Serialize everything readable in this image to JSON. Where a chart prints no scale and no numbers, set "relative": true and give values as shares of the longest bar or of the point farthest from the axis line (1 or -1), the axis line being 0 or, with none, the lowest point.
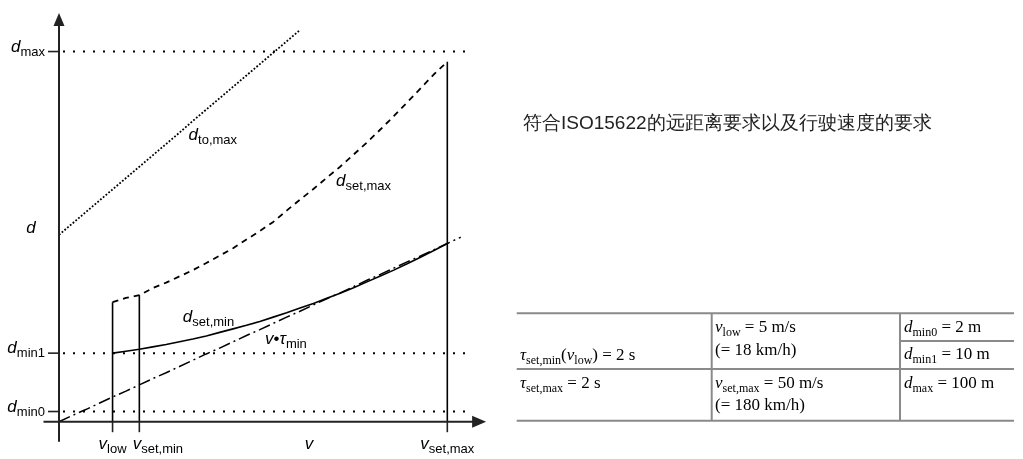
{
  "chart_data": [
    {
      "type": "line",
      "relative": true,
      "xlabel": "v",
      "ylabel": "d",
      "categories": [
        null,
        null,
        null,
        null,
        "v$_{low}$",
        null,
        null,
        null,
        null,
        null,
        null,
        null,
        null,
        null,
        null,
        null,
        null,
        null,
        null,
        null,
        null,
        null,
        null,
        null,
        null,
        null,
        null,
        null,
        null,
        "v$_{set,max}$",
        null
      ],
      "annotations": [
        "v$_{set,min}$"
      ],
      "series": [
        {
          "name": "d$_{to,max}$",
          "color": "#000000",
          "line_style": "dotted",
          "values": [
            0.477,
            0.506,
            0.535,
            0.564,
            0.593,
            0.622,
            0.651,
            0.68,
            0.709,
            0.738,
            0.768,
            0.797,
            0.826,
            0.855,
            0.884,
            0.913,
            0.942,
            0.971,
            1,
            null,
            null,
            null,
            null,
            null,
            null,
            null,
            null,
            null,
            null,
            null,
            null
          ]
        },
        {
          "name": "d$_{set,max}$",
          "color": "#000000",
          "line_style": "dashed",
          "values": [
            null,
            null,
            null,
            null,
            0.305,
            0.316,
            0.323,
            0.341,
            0.355,
            0.371,
            0.387,
            0.405,
            0.424,
            0.443,
            0.465,
            0.487,
            0.51,
            0.539,
            0.567,
            0.594,
            0.623,
            0.651,
            0.682,
            0.713,
            0.746,
            0.78,
            0.815,
            0.851,
            0.887,
            0.919,
            null
          ]
        },
        {
          "name": "d$_{set,min}$",
          "color": "#000000",
          "line_style": "solid",
          "values": [
            null,
            null,
            null,
            null,
            0.175,
            0.18,
            0.185,
            0.191,
            0.197,
            0.204,
            0.211,
            0.219,
            0.228,
            0.237,
            0.246,
            0.256,
            0.267,
            0.278,
            0.29,
            0.302,
            0.315,
            0.328,
            0.342,
            0.357,
            0.372,
            0.387,
            0.403,
            0.42,
            0.437,
            0.455,
            null
          ]
        },
        {
          "name": "v•τ$_{min}$",
          "color": "#000000",
          "line_style": "dashdot",
          "values": [
            0,
            0.016,
            0.031,
            0.047,
            0.063,
            0.078,
            0.094,
            0.11,
            0.125,
            0.141,
            0.157,
            0.173,
            0.188,
            0.204,
            0.22,
            0.235,
            0.251,
            0.267,
            0.282,
            0.298,
            0.314,
            0.329,
            0.345,
            0.361,
            0.376,
            0.392,
            0.408,
            0.423,
            0.439,
            0.455,
            0.471
          ]
        },
        {
          "type": "bar",
          "color": "#000000",
          "values": [
            null,
            null,
            null,
            null,
            0.305,
            null,
            0.323,
            null,
            null,
            null,
            null,
            null,
            null,
            null,
            null,
            null,
            null,
            null,
            null,
            null,
            null,
            null,
            null,
            null,
            null,
            null,
            null,
            null,
            null,
            0.919,
            null
          ]
        }
      ],
      "ref_lines": [
        {
          "axis": "y",
          "value": 0.945,
          "label": "d$_{max}$",
          "line_style": "dotted",
          "color": "#000000"
        },
        {
          "axis": "y",
          "value": 0.175,
          "label": "d$_{min1}$",
          "line_style": "dotted",
          "color": "#000000"
        },
        {
          "axis": "y",
          "value": 0.026,
          "label": "d$_{min0}$",
          "line_style": "dotted",
          "color": "#000000"
        }
      ]
    },
    {
      "type": "other",
      "title": "符合ISO15622的远距离要求以及行驶速度的要求",
      "annotations": [
        "v$_{low}$ = 5 m/s",
        "(= 18 km/h)",
        "d$_{min0}$ = 2 m",
        "τ$_{set,min}$(v$_{low}$) = 2 s",
        "d$_{min1}$ = 10 m",
        "τ$_{set,max}$ = 2 s",
        "v$_{set,max}$ = 50 m/s",
        "(= 180 km/h)",
        "d$_{max}$ = 100 m"
      ]
    }
  ]
}
